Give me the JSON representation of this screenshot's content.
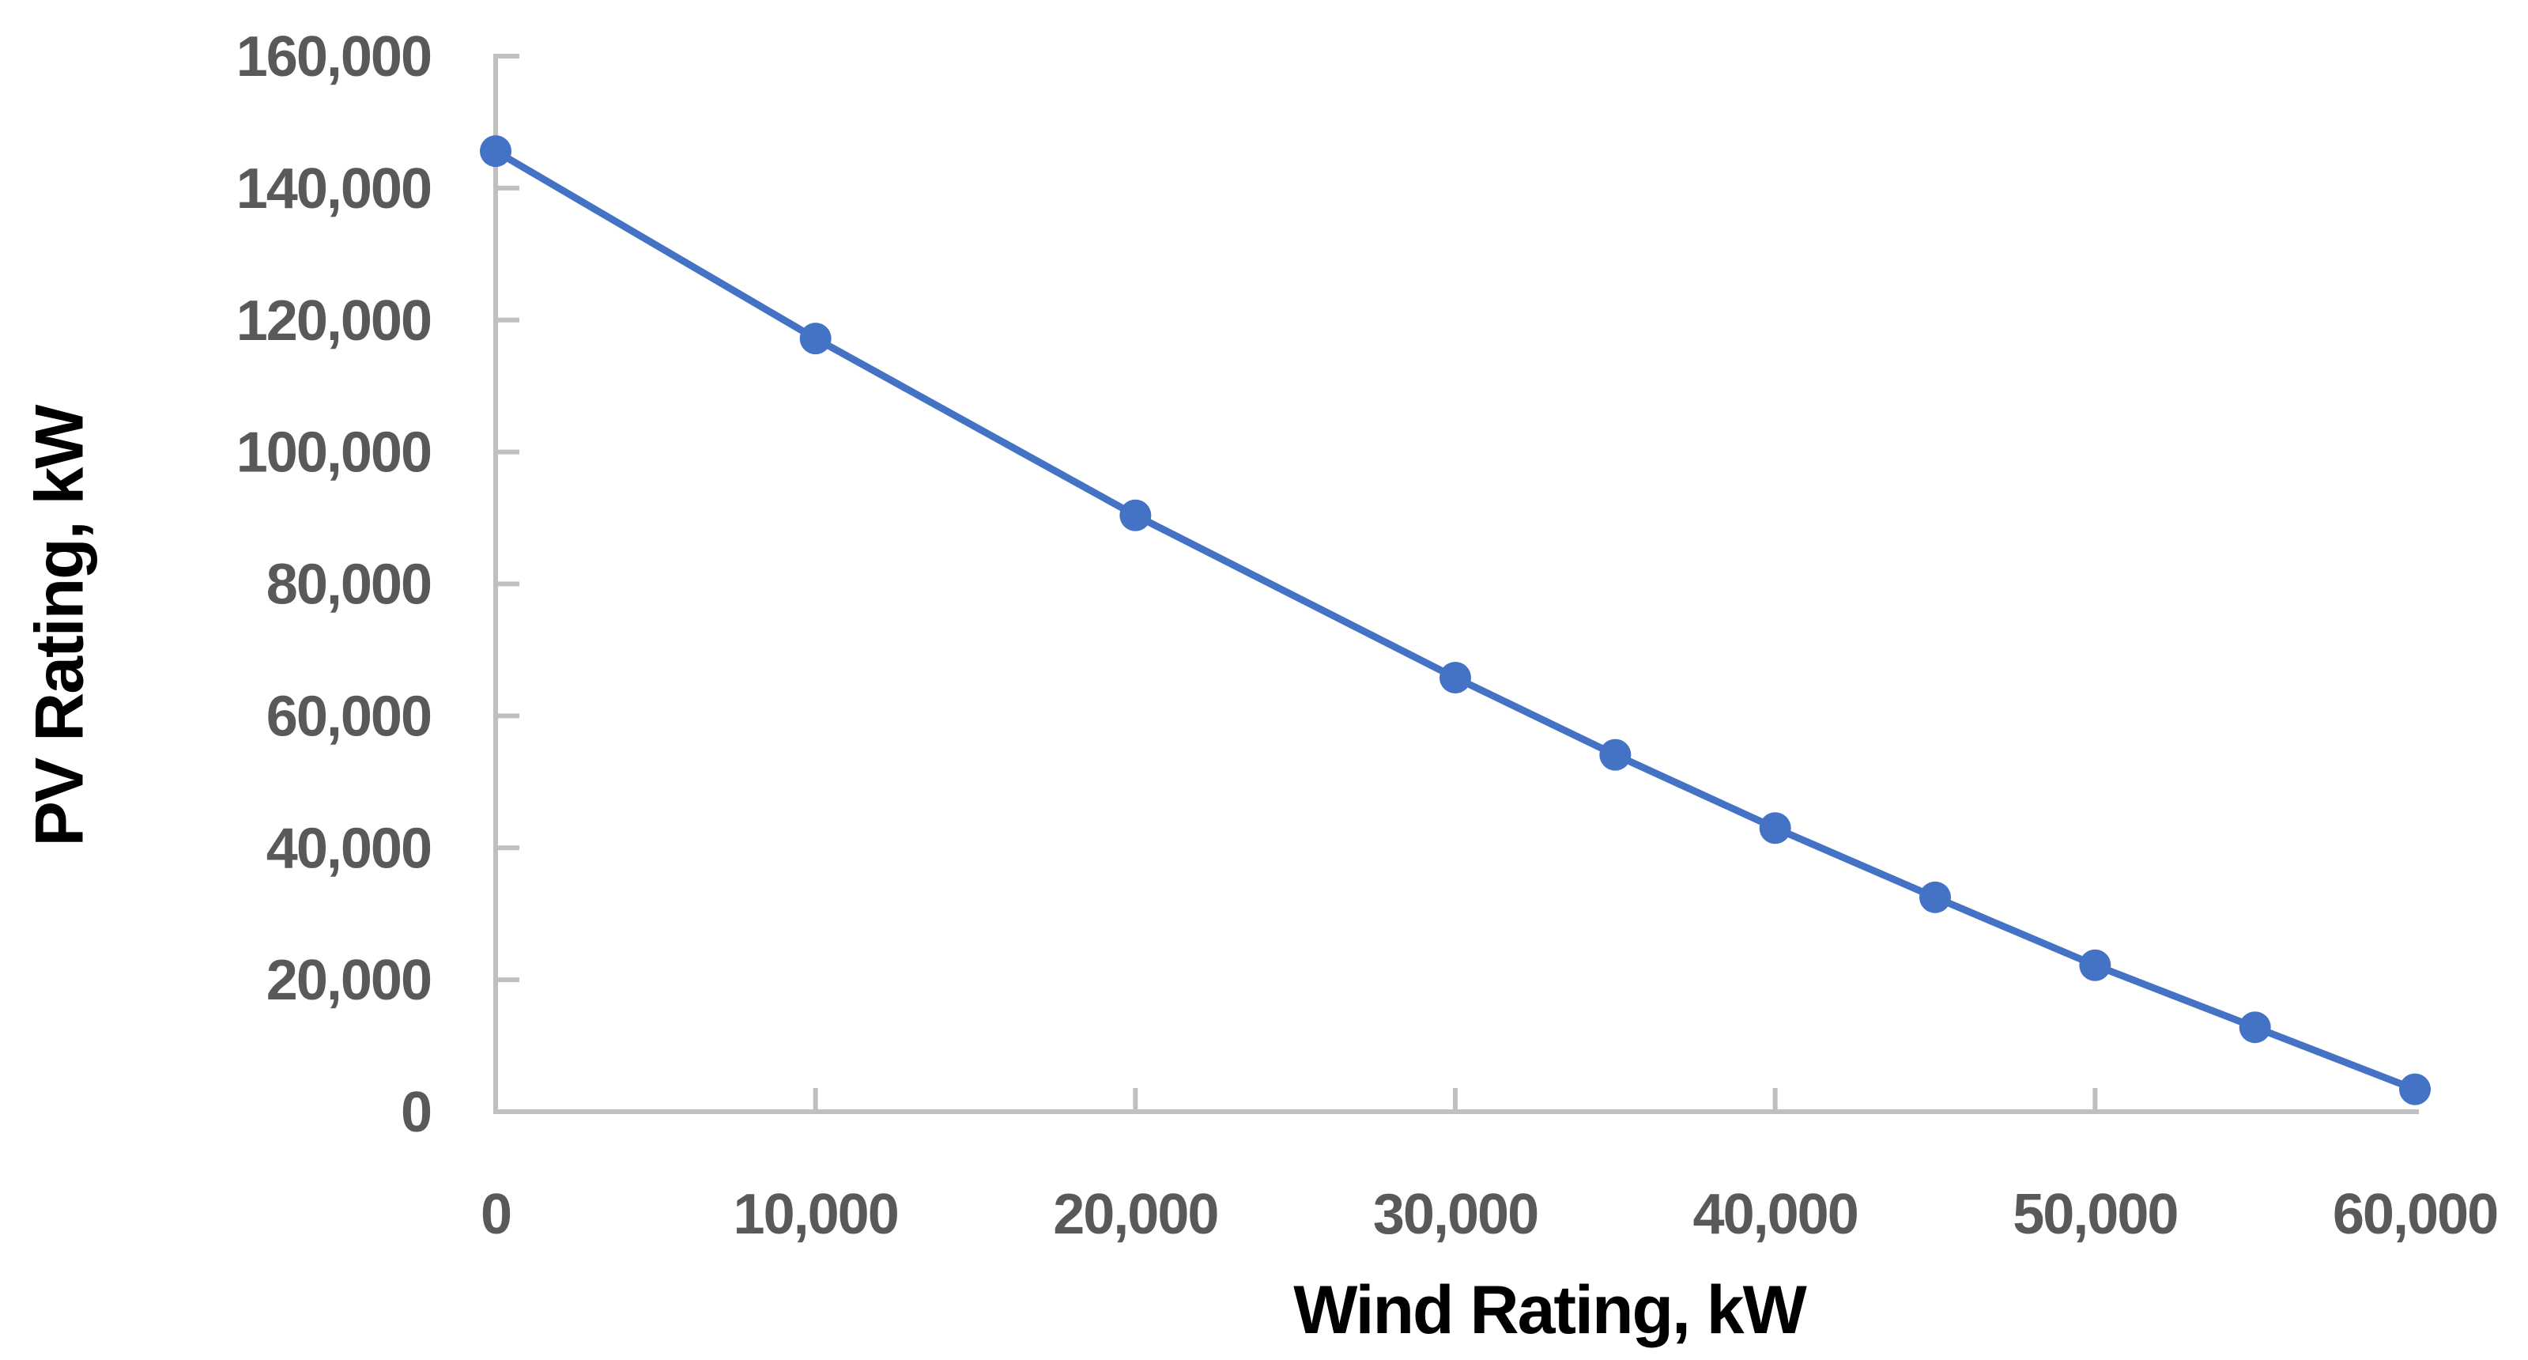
{
  "chart_data": {
    "type": "line",
    "title": "",
    "xlabel": "Wind Rating, kW",
    "ylabel": "PV Rating, kW",
    "x": [
      0,
      10000,
      20000,
      30000,
      35000,
      40000,
      45000,
      50000,
      55000,
      60000
    ],
    "y": [
      145600,
      117200,
      90400,
      65800,
      54100,
      43000,
      32500,
      22200,
      12800,
      3400
    ],
    "xlim": [
      0,
      60000
    ],
    "ylim": [
      0,
      160000
    ],
    "x_ticks": [
      0,
      10000,
      20000,
      30000,
      40000,
      50000,
      60000
    ],
    "y_ticks": [
      0,
      20000,
      40000,
      60000,
      80000,
      100000,
      120000,
      140000,
      160000
    ],
    "grid": false,
    "legend": "none",
    "marker": "circle",
    "line_color": "#4472C4",
    "axis_color": "#BFBFBF",
    "tick_label_color": "#595959",
    "axis_title_color": "#000000"
  }
}
